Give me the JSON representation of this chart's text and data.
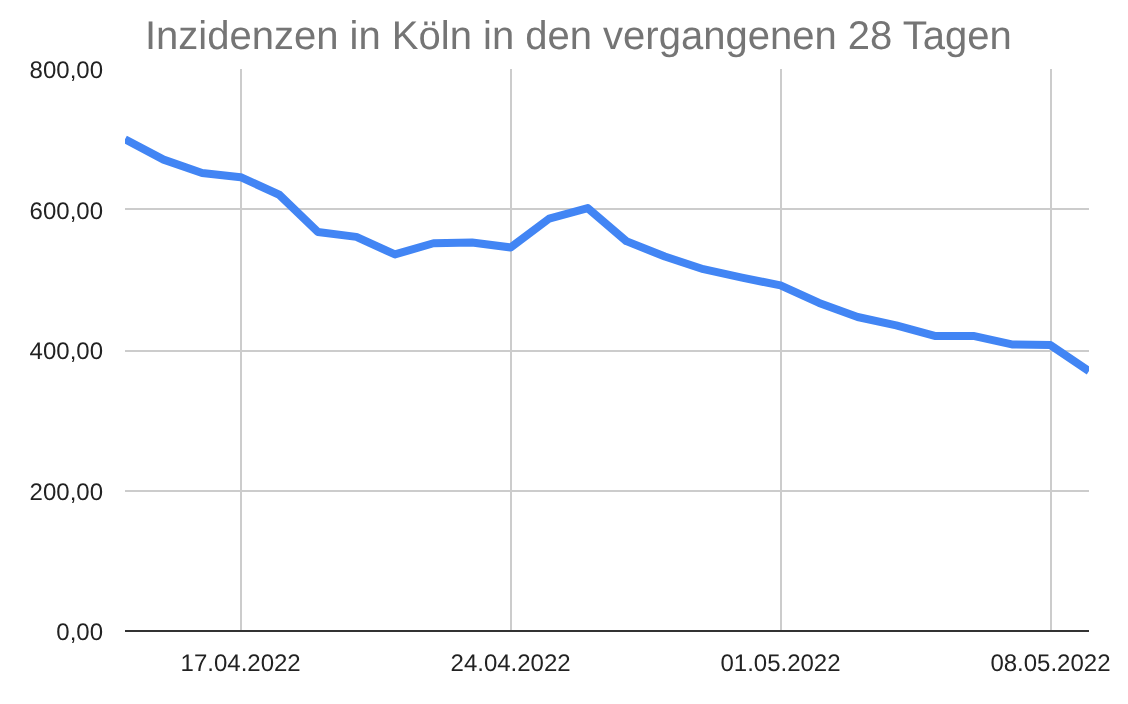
{
  "chart_data": {
    "type": "line",
    "title": "Inzidenzen in Köln in den vergangenen 28 Tagen",
    "x": [
      "2022-04-14",
      "2022-04-15",
      "2022-04-16",
      "2022-04-17",
      "2022-04-18",
      "2022-04-19",
      "2022-04-20",
      "2022-04-21",
      "2022-04-22",
      "2022-04-23",
      "2022-04-24",
      "2022-04-25",
      "2022-04-26",
      "2022-04-27",
      "2022-04-28",
      "2022-04-29",
      "2022-04-30",
      "2022-05-01",
      "2022-05-02",
      "2022-05-03",
      "2022-05-04",
      "2022-05-05",
      "2022-05-06",
      "2022-05-07",
      "2022-05-08",
      "2022-05-09"
    ],
    "series": [
      {
        "color": "#4285f4",
        "values": [
          700,
          671,
          652,
          646,
          621,
          568,
          561,
          536,
          552,
          553,
          546,
          587,
          602,
          555,
          533,
          515,
          503,
          492,
          467,
          447,
          435,
          420,
          420,
          408,
          407,
          370
        ]
      }
    ],
    "xlim": [
      "2022-04-14",
      "2022-05-09"
    ],
    "xticks": [
      {
        "value": "2022-04-17",
        "label": "17.04.2022"
      },
      {
        "value": "2022-04-24",
        "label": "24.04.2022"
      },
      {
        "value": "2022-05-01",
        "label": "01.05.2022"
      },
      {
        "value": "2022-05-08",
        "label": "08.05.2022"
      }
    ],
    "ylim": [
      0,
      800
    ],
    "yticks": [
      {
        "value": 0,
        "label": "0,00"
      },
      {
        "value": 200,
        "label": "200,00"
      },
      {
        "value": 400,
        "label": "400,00"
      },
      {
        "value": 600,
        "label": "600,00"
      },
      {
        "value": 800,
        "label": "800,00"
      }
    ],
    "grid": true,
    "marker": "none",
    "line_style": "solid"
  }
}
